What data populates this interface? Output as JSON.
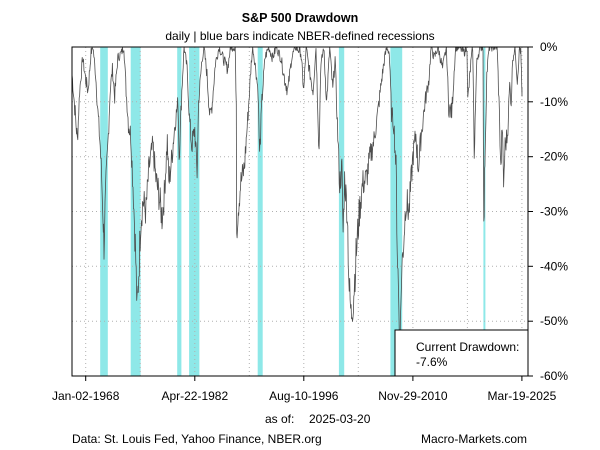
{
  "chart_data": {
    "type": "area",
    "title": "S&P 500 Drawdown",
    "subtitle": "daily | blue bars indicate NBER-defined recessions",
    "xlabel": "",
    "ylabel": "",
    "x_range": [
      1966.2,
      2026.0
    ],
    "ylim": [
      -60,
      0
    ],
    "y_ticks": [
      0,
      -10,
      -20,
      -30,
      -40,
      -50,
      -60
    ],
    "y_tick_labels": [
      "0%",
      "-10%",
      "-20%",
      "-30%",
      "-40%",
      "-50%",
      "-60%"
    ],
    "x_ticks": [
      {
        "label": "Jan-02-1968",
        "value": 1968.0
      },
      {
        "label": "Apr-22-1982",
        "value": 1982.3
      },
      {
        "label": "Aug-10-1996",
        "value": 1996.6
      },
      {
        "label": "Nov-29-2010",
        "value": 2010.9
      },
      {
        "label": "Mar-19-2025",
        "value": 2025.2
      }
    ],
    "x_grid": [
      1968.0,
      1975.15,
      1982.3,
      1989.45,
      1996.6,
      2003.75,
      2010.9,
      2018.05,
      2025.2
    ],
    "grid": true,
    "series_color": "#4d4d4d",
    "recession_color": "#8ee8e8",
    "recessions": [
      [
        1969.9,
        1970.9
      ],
      [
        1973.9,
        1975.2
      ],
      [
        1980.0,
        1980.55
      ],
      [
        1981.55,
        1982.9
      ],
      [
        1990.55,
        1991.2
      ],
      [
        2001.2,
        2001.9
      ],
      [
        2007.95,
        2009.5
      ],
      [
        2020.15,
        2020.35
      ]
    ],
    "series": [
      {
        "name": "S&P 500 Drawdown",
        "points": [
          [
            1966.2,
            -5
          ],
          [
            1966.5,
            -10
          ],
          [
            1966.9,
            -17
          ],
          [
            1967.2,
            -8
          ],
          [
            1967.6,
            -2
          ],
          [
            1968.0,
            -6
          ],
          [
            1968.3,
            -8
          ],
          [
            1968.7,
            -1
          ],
          [
            1968.95,
            0
          ],
          [
            1969.3,
            -5
          ],
          [
            1969.6,
            -12
          ],
          [
            1969.9,
            -18
          ],
          [
            1970.1,
            -24
          ],
          [
            1970.3,
            -32
          ],
          [
            1970.4,
            -36
          ],
          [
            1970.6,
            -27
          ],
          [
            1970.9,
            -18
          ],
          [
            1971.2,
            -8
          ],
          [
            1971.5,
            -4
          ],
          [
            1971.8,
            -9
          ],
          [
            1972.2,
            -2
          ],
          [
            1972.7,
            -1
          ],
          [
            1973.0,
            0
          ],
          [
            1973.3,
            -8
          ],
          [
            1973.6,
            -14
          ],
          [
            1973.9,
            -16
          ],
          [
            1974.2,
            -25
          ],
          [
            1974.5,
            -36
          ],
          [
            1974.75,
            -48
          ],
          [
            1974.9,
            -43
          ],
          [
            1975.2,
            -32
          ],
          [
            1975.5,
            -28
          ],
          [
            1975.9,
            -30
          ],
          [
            1976.3,
            -22
          ],
          [
            1976.8,
            -18
          ],
          [
            1977.2,
            -24
          ],
          [
            1977.6,
            -27
          ],
          [
            1978.0,
            -31
          ],
          [
            1978.3,
            -27
          ],
          [
            1978.7,
            -17
          ],
          [
            1978.9,
            -25
          ],
          [
            1979.3,
            -20
          ],
          [
            1979.7,
            -14
          ],
          [
            1980.1,
            -10
          ],
          [
            1980.25,
            -20
          ],
          [
            1980.6,
            -8
          ],
          [
            1980.9,
            0
          ],
          [
            1981.3,
            -4
          ],
          [
            1981.6,
            -13
          ],
          [
            1981.9,
            -18
          ],
          [
            1982.3,
            -15
          ],
          [
            1982.6,
            -23
          ],
          [
            1982.8,
            -10
          ],
          [
            1983.2,
            -3
          ],
          [
            1983.5,
            0
          ],
          [
            1983.9,
            -5
          ],
          [
            1984.3,
            -13
          ],
          [
            1984.6,
            -10
          ],
          [
            1985.0,
            -3
          ],
          [
            1985.5,
            0
          ],
          [
            1986.0,
            -2
          ],
          [
            1986.6,
            -4
          ],
          [
            1987.0,
            0
          ],
          [
            1987.6,
            0
          ],
          [
            1987.75,
            -12
          ],
          [
            1987.8,
            -33
          ],
          [
            1987.95,
            -30
          ],
          [
            1988.3,
            -25
          ],
          [
            1988.8,
            -22
          ],
          [
            1989.3,
            -12
          ],
          [
            1989.7,
            -3
          ],
          [
            1989.9,
            0
          ],
          [
            1990.3,
            -4
          ],
          [
            1990.6,
            -8
          ],
          [
            1990.8,
            -20
          ],
          [
            1991.1,
            -10
          ],
          [
            1991.5,
            -2
          ],
          [
            1992.0,
            0
          ],
          [
            1992.5,
            -2
          ],
          [
            1993.0,
            0
          ],
          [
            1993.6,
            -2
          ],
          [
            1994.1,
            -6
          ],
          [
            1994.5,
            -8
          ],
          [
            1995.0,
            -2
          ],
          [
            1995.5,
            0
          ],
          [
            1996.2,
            -1
          ],
          [
            1996.6,
            -8
          ],
          [
            1996.9,
            0
          ],
          [
            1997.3,
            -4
          ],
          [
            1997.8,
            -8
          ],
          [
            1998.2,
            0
          ],
          [
            1998.6,
            -19
          ],
          [
            1998.8,
            -4
          ],
          [
            1999.2,
            0
          ],
          [
            1999.6,
            -10
          ],
          [
            2000.0,
            0
          ],
          [
            2000.4,
            -8
          ],
          [
            2000.7,
            -2
          ],
          [
            2001.0,
            -14
          ],
          [
            2001.3,
            -25
          ],
          [
            2001.6,
            -22
          ],
          [
            2001.75,
            -34
          ],
          [
            2001.95,
            -24
          ],
          [
            2002.3,
            -30
          ],
          [
            2002.55,
            -44
          ],
          [
            2002.8,
            -49
          ],
          [
            2003.1,
            -46
          ],
          [
            2003.5,
            -37
          ],
          [
            2003.9,
            -30
          ],
          [
            2004.3,
            -25
          ],
          [
            2004.8,
            -24
          ],
          [
            2005.3,
            -20
          ],
          [
            2005.8,
            -17
          ],
          [
            2006.3,
            -12
          ],
          [
            2006.8,
            -6
          ],
          [
            2007.2,
            -2
          ],
          [
            2007.5,
            0
          ],
          [
            2007.8,
            -1
          ],
          [
            2008.1,
            -12
          ],
          [
            2008.4,
            -14
          ],
          [
            2008.7,
            -22
          ],
          [
            2008.85,
            -36
          ],
          [
            2009.0,
            -44
          ],
          [
            2009.2,
            -56
          ],
          [
            2009.4,
            -42
          ],
          [
            2009.7,
            -35
          ],
          [
            2010.0,
            -28
          ],
          [
            2010.4,
            -30
          ],
          [
            2010.9,
            -20
          ],
          [
            2011.3,
            -16
          ],
          [
            2011.6,
            -22
          ],
          [
            2012.0,
            -16
          ],
          [
            2012.5,
            -10
          ],
          [
            2013.0,
            -6
          ],
          [
            2013.3,
            0
          ],
          [
            2013.7,
            -2
          ],
          [
            2014.2,
            0
          ],
          [
            2014.8,
            -4
          ],
          [
            2015.3,
            0
          ],
          [
            2015.6,
            -11
          ],
          [
            2016.0,
            -12
          ],
          [
            2016.5,
            0
          ],
          [
            2017.0,
            0
          ],
          [
            2017.6,
            -1
          ],
          [
            2018.0,
            0
          ],
          [
            2018.1,
            -10
          ],
          [
            2018.5,
            -3
          ],
          [
            2018.75,
            0
          ],
          [
            2018.95,
            -19
          ],
          [
            2019.3,
            -2
          ],
          [
            2019.8,
            0
          ],
          [
            2020.1,
            0
          ],
          [
            2020.2,
            -34
          ],
          [
            2020.35,
            -20
          ],
          [
            2020.6,
            -5
          ],
          [
            2020.9,
            0
          ],
          [
            2021.5,
            0
          ],
          [
            2021.95,
            0
          ],
          [
            2022.2,
            -10
          ],
          [
            2022.45,
            -23
          ],
          [
            2022.6,
            -14
          ],
          [
            2022.8,
            -25
          ],
          [
            2023.0,
            -18
          ],
          [
            2023.3,
            -16
          ],
          [
            2023.6,
            -7
          ],
          [
            2023.8,
            -10
          ],
          [
            2024.0,
            -2
          ],
          [
            2024.3,
            0
          ],
          [
            2024.6,
            -6
          ],
          [
            2024.9,
            0
          ],
          [
            2025.05,
            -1
          ],
          [
            2025.15,
            -5
          ],
          [
            2025.21,
            -10
          ],
          [
            2025.22,
            -7.6
          ]
        ]
      }
    ],
    "annotation_label": "Current Drawdown:",
    "annotation_value": "-7.6%",
    "as_of_label": "as of:",
    "as_of_date": "2025-03-20",
    "source_text": "Data: St. Louis Fed, Yahoo Finance, NBER.org",
    "credit_text": "Macro-Markets.com"
  }
}
